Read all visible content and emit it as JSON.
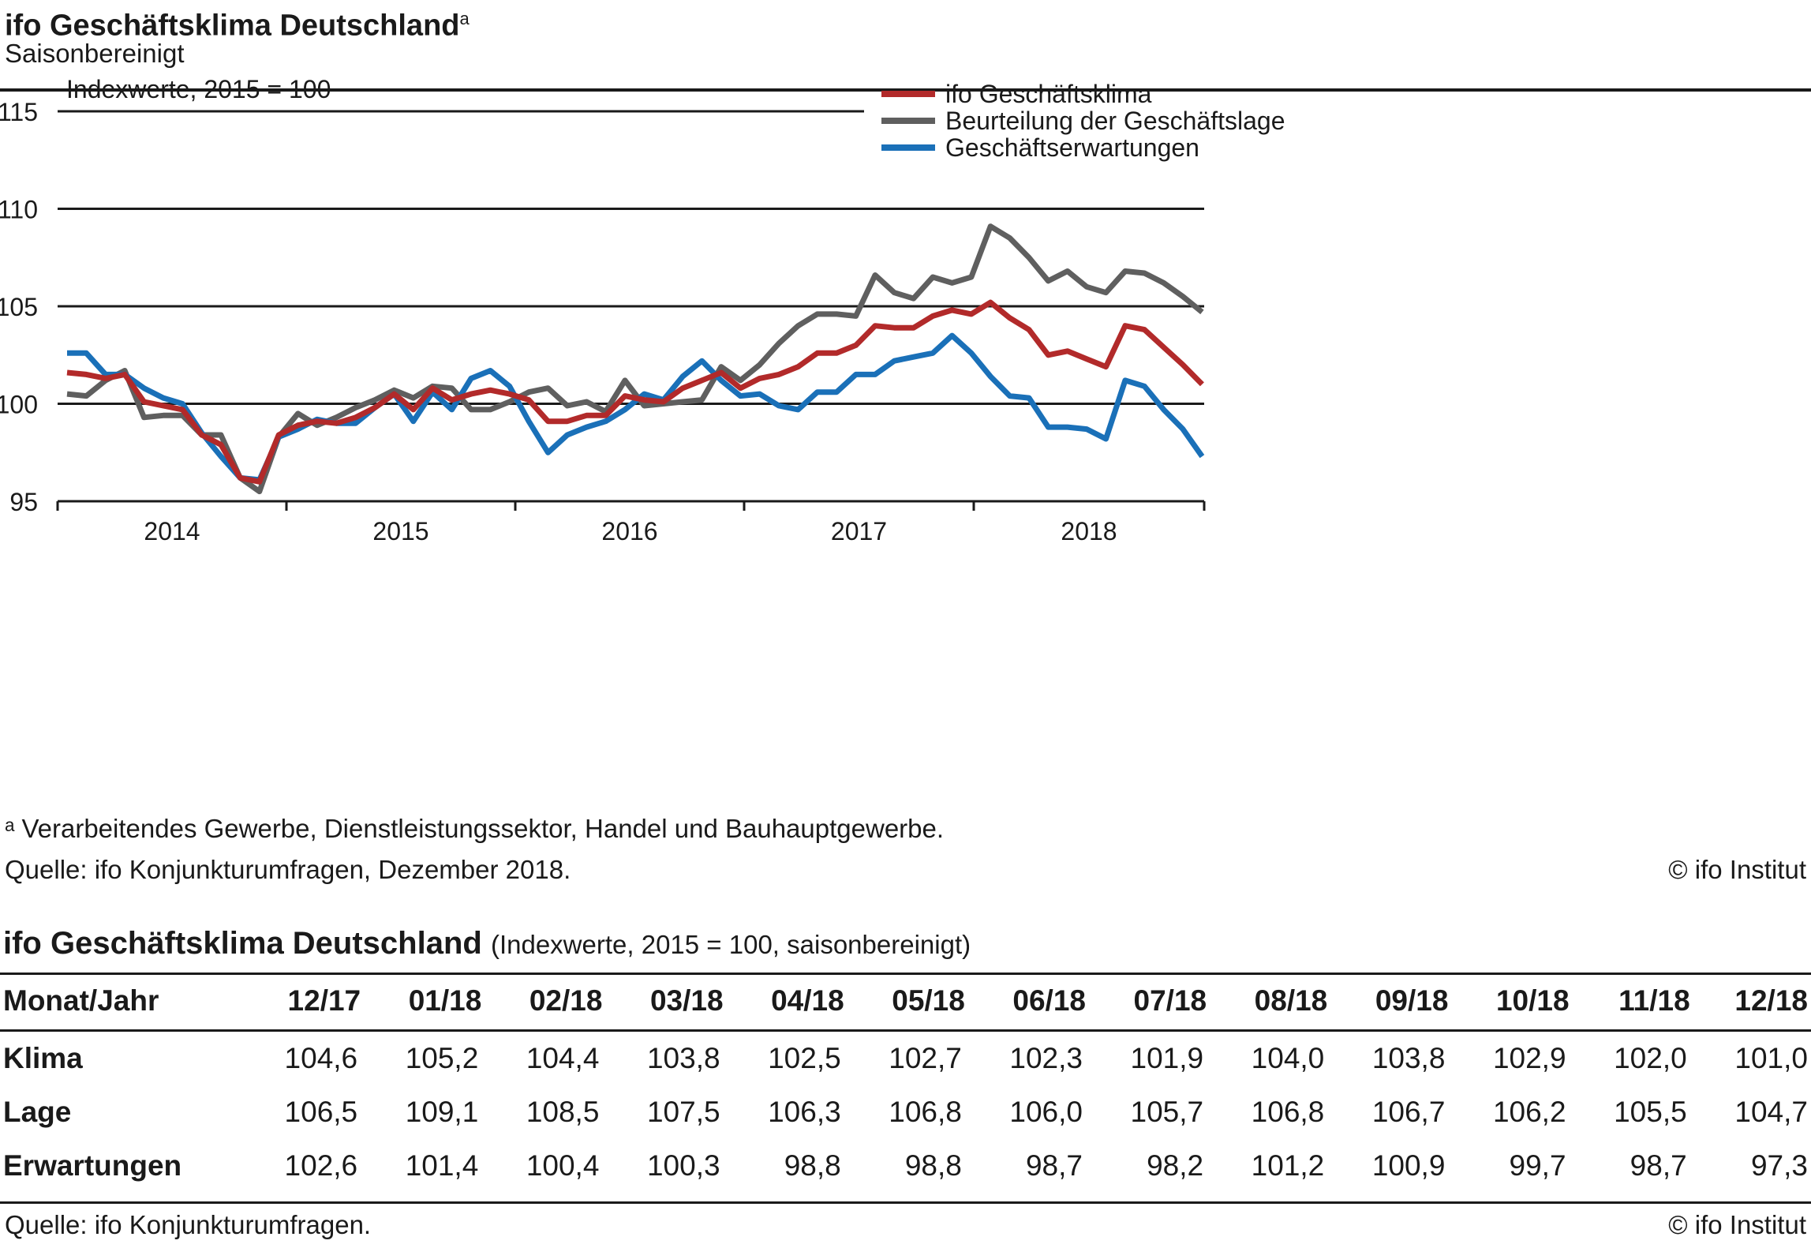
{
  "title": "ifo Geschäftsklima Deutschland",
  "title_sup": "a",
  "subtitle": "Saisonbereinigt",
  "footnote": "ᵃ Verarbeitendes Gewerbe, Dienstleistungssektor, Handel und Bauhauptgewerbe.",
  "source_chart": "Quelle: ifo Konjunkturumfragen, Dezember 2018.",
  "copyright": "© ifo Institut",
  "chart_data": {
    "type": "line",
    "annotation": "Indexwerte, 2015 = 100",
    "ylim": [
      95,
      115
    ],
    "yticks": [
      95,
      100,
      105,
      110,
      115
    ],
    "ytick_labels": [
      "95",
      "100",
      "105",
      "110",
      "115"
    ],
    "x_start": "2013-12",
    "x_end": "2018-12",
    "year_labels": [
      "2014",
      "2015",
      "2016",
      "2017",
      "2018"
    ],
    "grid": "horizontal",
    "legend_position": "top-right",
    "series": [
      {
        "name": "ifo Geschäftsklima",
        "color": "#b22a2a",
        "values": [
          101.6,
          101.5,
          101.3,
          101.5,
          100.1,
          99.9,
          99.7,
          98.4,
          97.9,
          96.2,
          96.0,
          98.4,
          98.9,
          99.1,
          99.0,
          99.3,
          99.8,
          100.5,
          99.7,
          100.8,
          100.2,
          100.5,
          100.7,
          100.5,
          100.2,
          99.1,
          99.1,
          99.4,
          99.4,
          100.4,
          100.2,
          100.1,
          100.8,
          101.2,
          101.6,
          100.8,
          101.3,
          101.5,
          101.9,
          102.6,
          102.6,
          103.0,
          104.0,
          103.9,
          103.9,
          104.5,
          104.8,
          104.6,
          105.2,
          104.4,
          103.8,
          102.5,
          102.7,
          102.3,
          101.9,
          104.0,
          103.8,
          102.9,
          102.0,
          101.0
        ]
      },
      {
        "name": "Beurteilung der Geschäftslage",
        "color": "#5f5f5f",
        "values": [
          100.5,
          100.4,
          101.2,
          101.7,
          99.3,
          99.4,
          99.4,
          98.4,
          98.4,
          96.2,
          95.5,
          98.3,
          99.5,
          98.9,
          99.3,
          99.8,
          100.2,
          100.7,
          100.3,
          100.9,
          100.8,
          99.7,
          99.7,
          100.1,
          100.6,
          100.8,
          99.9,
          100.1,
          99.6,
          101.2,
          99.9,
          100.0,
          100.1,
          100.2,
          101.9,
          101.2,
          102.0,
          103.1,
          104.0,
          104.6,
          104.6,
          104.5,
          106.6,
          105.7,
          105.4,
          106.5,
          106.2,
          106.5,
          109.1,
          108.5,
          107.5,
          106.3,
          106.8,
          106.0,
          105.7,
          106.8,
          106.7,
          106.2,
          105.5,
          104.7
        ]
      },
      {
        "name": "Geschäftserwartungen",
        "color": "#1a70b8",
        "values": [
          102.6,
          102.6,
          101.5,
          101.5,
          100.8,
          100.3,
          100.0,
          98.5,
          97.3,
          96.2,
          96.1,
          98.3,
          98.7,
          99.2,
          99.0,
          99.0,
          99.8,
          100.5,
          99.1,
          100.6,
          99.7,
          101.3,
          101.7,
          100.9,
          99.1,
          97.5,
          98.4,
          98.8,
          99.1,
          99.7,
          100.5,
          100.2,
          101.4,
          102.2,
          101.2,
          100.4,
          100.5,
          99.9,
          99.7,
          100.6,
          100.6,
          101.5,
          101.5,
          102.2,
          102.4,
          102.6,
          103.5,
          102.6,
          101.4,
          100.4,
          100.3,
          98.8,
          98.8,
          98.7,
          98.2,
          101.2,
          100.9,
          99.7,
          98.7,
          97.3
        ]
      }
    ]
  },
  "table": {
    "title": "ifo Geschäftsklima Deutschland",
    "title_note": "(Indexwerte, 2015 = 100, saisonbereinigt)",
    "row_header": "Monat/Jahr",
    "columns": [
      "12/17",
      "01/18",
      "02/18",
      "03/18",
      "04/18",
      "05/18",
      "06/18",
      "07/18",
      "08/18",
      "09/18",
      "10/18",
      "11/18",
      "12/18"
    ],
    "rows": [
      {
        "label": "Klima",
        "values": [
          "104,6",
          "105,2",
          "104,4",
          "103,8",
          "102,5",
          "102,7",
          "102,3",
          "101,9",
          "104,0",
          "103,8",
          "102,9",
          "102,0",
          "101,0"
        ]
      },
      {
        "label": "Lage",
        "values": [
          "106,5",
          "109,1",
          "108,5",
          "107,5",
          "106,3",
          "106,8",
          "106,0",
          "105,7",
          "106,8",
          "106,7",
          "106,2",
          "105,5",
          "104,7"
        ]
      },
      {
        "label": "Erwartungen",
        "values": [
          "102,6",
          "101,4",
          "100,4",
          "100,3",
          "98,8",
          "98,8",
          "98,7",
          "98,2",
          "101,2",
          "100,9",
          "99,7",
          "98,7",
          "97,3"
        ]
      }
    ],
    "source": "Quelle: ifo Konjunkturumfragen.",
    "copyright": "© ifo Institut"
  }
}
